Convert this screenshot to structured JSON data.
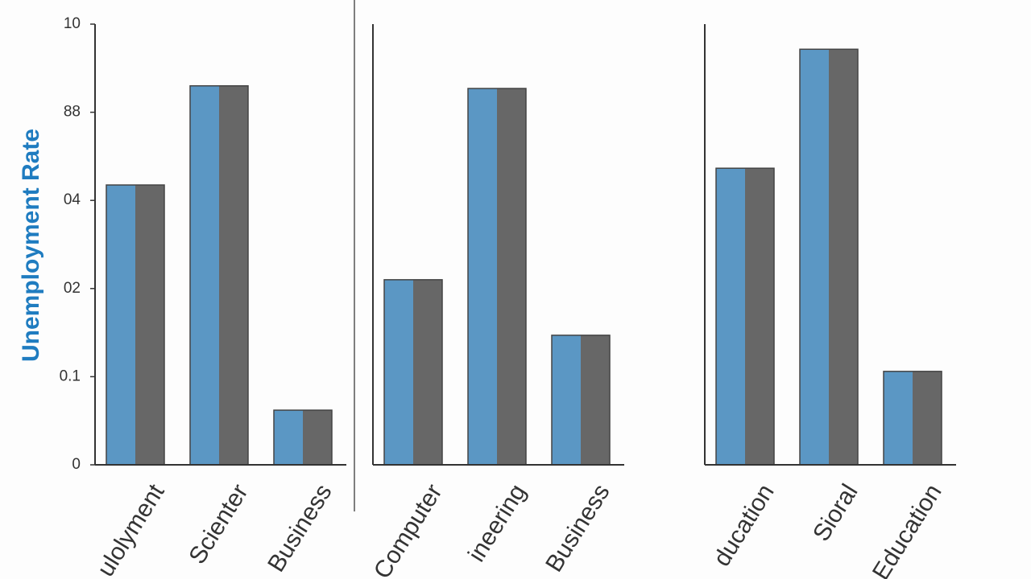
{
  "chart_data": [
    {
      "type": "bar",
      "ylabel": "Unemployment Rate",
      "categories": [
        "ulolyment",
        "Scienter",
        "Business"
      ],
      "values": [
        6.35,
        8.6,
        1.24
      ],
      "colors": [
        "#5b97c4",
        "#676767"
      ],
      "ylim": [
        0,
        10
      ],
      "yticks": [
        0,
        {
          "value": 2,
          "label": "0.1"
        },
        {
          "value": 4,
          "label": "02"
        },
        {
          "value": 6,
          "label": "04"
        },
        {
          "value": 8,
          "label": "88"
        },
        10
      ]
    },
    {
      "type": "bar",
      "categories": [
        "Computer",
        "ineering",
        "Business"
      ],
      "values": [
        4.2,
        8.54,
        2.94
      ],
      "colors": [
        "#5b97c4",
        "#676767"
      ],
      "ylim": [
        0,
        10
      ]
    },
    {
      "type": "bar",
      "categories": [
        "ducation",
        "Sioral",
        "Education"
      ],
      "values": [
        6.73,
        9.43,
        2.12
      ],
      "colors": [
        "#5b97c4",
        "#676767"
      ],
      "ylim": [
        0,
        10
      ]
    }
  ]
}
